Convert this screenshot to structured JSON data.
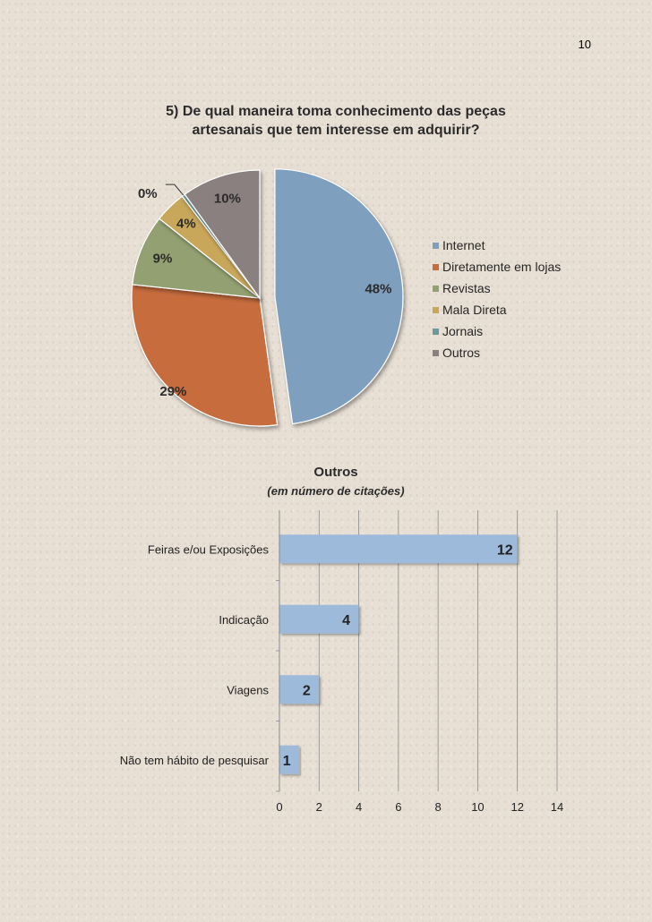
{
  "page": {
    "number": "10"
  },
  "colors": {
    "internet": "#7f9fbe",
    "lojas": "#c76c3e",
    "revistas": "#93a071",
    "mala": "#c8a65a",
    "jornais": "#6a9a9c",
    "outros": "#8a8080",
    "bars": "#9dbadb",
    "grid": "#8c8c8c"
  },
  "chart_data": [
    {
      "type": "pie",
      "title_lines": [
        "5) De qual maneira toma conhecimento das peças",
        "artesanais que tem interesse em adquirir?"
      ],
      "categories": [
        "Internet",
        "Diretamente em lojas",
        "Revistas",
        "Mala Direta",
        "Jornais",
        "Outros"
      ],
      "values": [
        48,
        29,
        9,
        4,
        0.4,
        10
      ],
      "labels": [
        "48%",
        "29%",
        "9%",
        "4%",
        "0%",
        "10%"
      ],
      "exploded": "Internet",
      "legend_position": "right"
    },
    {
      "type": "bar",
      "orientation": "horizontal",
      "title": "Outros",
      "subtitle": "(em número de citações)",
      "categories": [
        "Feiras e/ou Exposições",
        "Indicação",
        "Viagens",
        "Não tem hábito de pesquisar"
      ],
      "values": [
        12,
        4,
        2,
        1
      ],
      "data_labels": [
        "12",
        "4",
        "2",
        "1"
      ],
      "xlim": [
        0,
        14
      ],
      "xticks": [
        0,
        2,
        4,
        6,
        8,
        10,
        12,
        14
      ],
      "xtick_labels": [
        "0",
        "2",
        "4",
        "6",
        "8",
        "10",
        "12",
        "14"
      ],
      "grid": "vertical"
    }
  ]
}
